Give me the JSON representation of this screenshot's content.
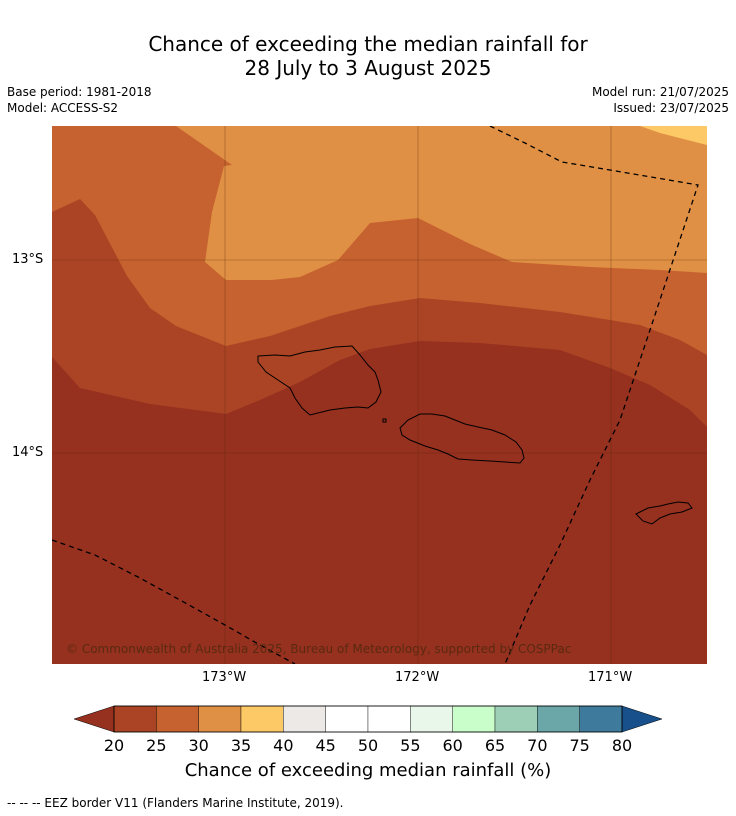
{
  "title_line1": "Chance of exceeding the median rainfall for",
  "title_line2": "28 July to 3 August 2025",
  "meta": {
    "base_period": "Base period: 1981-2018",
    "model": "Model: ACCESS-S2",
    "model_run": "Model run: 21/07/2025",
    "issued": "Issued: 23/07/2025"
  },
  "axes": {
    "lat_ticks": [
      "13°S",
      "14°S"
    ],
    "lon_ticks": [
      "173°W",
      "172°W",
      "171°W"
    ]
  },
  "copyright": "© Commonwealth of Australia 2025, Bureau of Meteorology, supported by COSPPac",
  "colorbar": {
    "title": "Chance of exceeding median rainfall (%)",
    "ticks": [
      "20",
      "25",
      "30",
      "35",
      "40",
      "45",
      "50",
      "55",
      "60",
      "65",
      "70",
      "75",
      "80"
    ],
    "colors": [
      "#ab4424",
      "#c6622f",
      "#e09044",
      "#fdc866",
      "#ece9e6",
      "#ffffff",
      "#ffffff",
      "#e9f7ea",
      "#c9fdc9",
      "#9ccfb6",
      "#6ba6a8",
      "#3d7a9b"
    ],
    "under_color": "#96301f",
    "over_color": "#17508a"
  },
  "map_colors": {
    "c20": "#96301f",
    "c25": "#ab4424",
    "c30": "#c6622f",
    "c35": "#e09044",
    "c40": "#fdc866"
  },
  "footer": "--  --  -- EEZ border V11 (Flanders Marine Institute, 2019)."
}
